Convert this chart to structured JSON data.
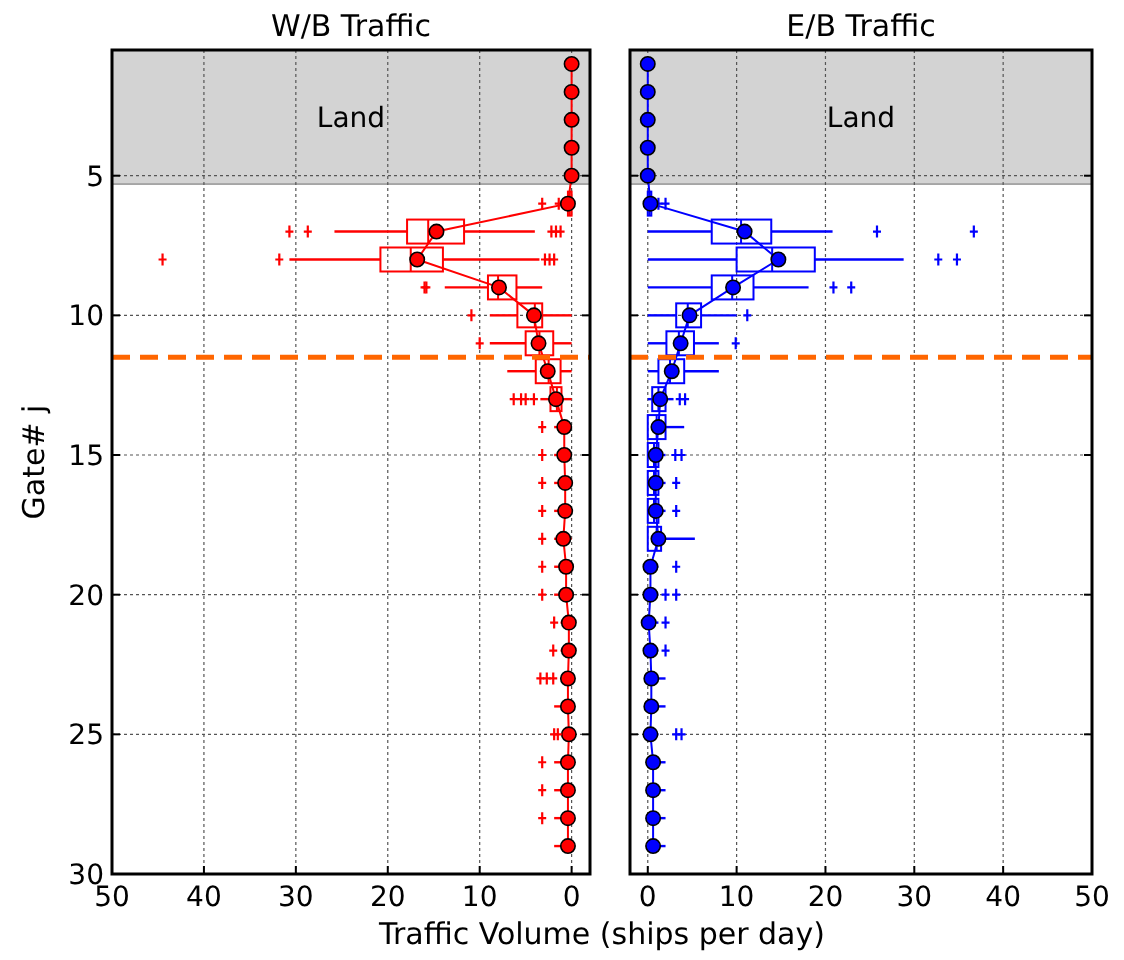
{
  "chart_data": [
    {
      "type": "box",
      "title": "W/B Traffic",
      "orientation": "horizontal",
      "xlabel": "Traffic Volume (ships per day)",
      "ylabel": "Gate# j",
      "xlim": [
        50,
        -2
      ],
      "xticks": [
        50,
        40,
        30,
        20,
        10,
        0
      ],
      "ylim": [
        30,
        0.5
      ],
      "yticks": [
        5,
        10,
        15,
        20,
        25,
        30
      ],
      "grid": true,
      "bands": [
        {
          "axis": "y",
          "from": 0.5,
          "to": 5.3,
          "label": "Land",
          "color": "#d3d3d3"
        }
      ],
      "ref_lines": [
        {
          "axis": "y",
          "value": 11.5,
          "color": "#ff6600",
          "line_style": "dashed"
        }
      ],
      "series": [
        {
          "color": "#ff0000",
          "x": [
            6,
            7,
            8,
            9,
            10,
            11,
            12,
            13
          ],
          "boxes": [
            {
              "low": 0,
              "q1": 0,
              "median": 0.2,
              "q3": 0.4,
              "high": 0.6,
              "outliers": [
                1.4,
                3.2
              ]
            },
            {
              "low": 4.0,
              "q1": 11.7,
              "median": 15.6,
              "q3": 17.9,
              "high": 25.8,
              "outliers": [
                1.2,
                1.7,
                2.2,
                28.7,
                30.7
              ]
            },
            {
              "low": 3.5,
              "q1": 14.0,
              "median": 17.5,
              "q3": 20.8,
              "high": 30.7,
              "outliers": [
                1.9,
                2.4,
                2.9,
                31.8,
                44.5
              ]
            },
            {
              "low": 3.2,
              "q1": 6.0,
              "median": 8.0,
              "q3": 9.1,
              "high": 13.8,
              "outliers": [
                15.8,
                16.0
              ]
            },
            {
              "low": 0,
              "q1": 3.2,
              "median": 4.0,
              "q3": 5.9,
              "high": 8.9,
              "outliers": [
                10.9
              ]
            },
            {
              "low": 0,
              "q1": 2.0,
              "median": 3.5,
              "q3": 5.0,
              "high": 8.9,
              "outliers": [
                10.0
              ]
            },
            {
              "low": 0,
              "q1": 1.2,
              "median": 2.5,
              "q3": 3.9,
              "high": 7.0
            },
            {
              "low": 0,
              "q1": 1.1,
              "median": 1.6,
              "q3": 2.3,
              "high": 3.4,
              "outliers": [
                4.1,
                5.0,
                5.5,
                6.3
              ]
            }
          ]
        },
        {
          "type": "line",
          "color": "#ff0000",
          "marker": "circle",
          "x": [
            1,
            2,
            3,
            4,
            5,
            6,
            7,
            8,
            9,
            10,
            11,
            12,
            13,
            14,
            15,
            16,
            17,
            18,
            19,
            20,
            21,
            22,
            23,
            24,
            25,
            26,
            27,
            28,
            29
          ],
          "values": [
            0,
            0,
            0,
            0,
            0,
            0.4,
            14.7,
            16.8,
            7.9,
            4.1,
            3.6,
            2.6,
            1.7,
            0.8,
            0.8,
            0.7,
            0.7,
            0.9,
            0.6,
            0.6,
            0.3,
            0.3,
            0.4,
            0.4,
            0.3,
            0.4,
            0.4,
            0.4,
            0.4
          ],
          "errors": [
            null,
            null,
            null,
            null,
            null,
            null,
            null,
            null,
            null,
            null,
            null,
            null,
            null,
            [
              0,
              1.9
            ],
            [
              0,
              1.9
            ],
            [
              0,
              1.9
            ],
            [
              0,
              1.9
            ],
            [
              0,
              1.9
            ],
            [
              0,
              1.9
            ],
            [
              0,
              1.9
            ],
            [
              0,
              1.2
            ],
            [
              0,
              1.2
            ],
            [
              0,
              1.2
            ],
            [
              0,
              1.9
            ],
            [
              0,
              0.9
            ],
            [
              0,
              1.9
            ],
            [
              0,
              1.9
            ],
            [
              0,
              1.9
            ],
            [
              0,
              1.9
            ]
          ]
        },
        {
          "type": "scatter",
          "color": "#ff0000",
          "marker": "cross",
          "x": [
            14,
            15,
            16,
            17,
            18,
            19,
            20,
            21,
            22,
            23,
            23,
            23,
            25,
            25,
            26,
            27,
            28
          ],
          "values": [
            3.2,
            3.2,
            3.2,
            3.2,
            3.2,
            3.2,
            3.2,
            1.9,
            2.0,
            2.0,
            2.7,
            3.4,
            1.5,
            1.9,
            3.2,
            3.2,
            3.2
          ]
        }
      ]
    },
    {
      "type": "box",
      "title": "E/B Traffic",
      "orientation": "horizontal",
      "xlim": [
        -2,
        50
      ],
      "xticks": [
        0,
        10,
        20,
        30,
        40,
        50
      ],
      "ylim": [
        30,
        0.5
      ],
      "yticks": [
        5,
        10,
        15,
        20,
        25,
        30
      ],
      "grid": true,
      "tick_labels": "x",
      "bands": [
        {
          "axis": "y",
          "from": 0.5,
          "to": 5.3,
          "label": "Land",
          "color": "#d3d3d3"
        }
      ],
      "ref_lines": [
        {
          "axis": "y",
          "value": 11.5,
          "color": "#ff6600",
          "line_style": "dashed"
        }
      ],
      "series": [
        {
          "color": "#0000ff",
          "x": [
            6,
            7,
            8,
            9,
            10,
            11,
            12,
            13,
            14,
            15,
            16,
            17,
            18
          ],
          "boxes": [
            {
              "low": 0,
              "q1": 0,
              "median": 0.2,
              "q3": 0.4,
              "high": 0.6,
              "outliers": [
                1.2,
                2.0
              ]
            },
            {
              "low": 0,
              "q1": 7.2,
              "median": 10.5,
              "q3": 13.9,
              "high": 20.8,
              "outliers": [
                25.8,
                36.7
              ]
            },
            {
              "low": 0,
              "q1": 10.0,
              "median": 14.0,
              "q3": 18.8,
              "high": 28.8,
              "outliers": [
                32.7,
                34.8
              ]
            },
            {
              "low": 0,
              "q1": 7.2,
              "median": 9.5,
              "q3": 11.9,
              "high": 18.1,
              "outliers": [
                20.9,
                22.9
              ]
            },
            {
              "low": 0,
              "q1": 3.2,
              "median": 4.5,
              "q3": 6.0,
              "high": 10.0,
              "outliers": [
                11.2
              ]
            },
            {
              "low": 0,
              "q1": 2.1,
              "median": 3.5,
              "q3": 5.2,
              "high": 8.0,
              "outliers": [
                9.9
              ]
            },
            {
              "low": 0,
              "q1": 1.2,
              "median": 2.5,
              "q3": 4.1,
              "high": 8.0
            },
            {
              "low": 0,
              "q1": 0.5,
              "median": 1.2,
              "q3": 2.0,
              "high": 2.9,
              "outliers": [
                3.6,
                4.2
              ]
            },
            {
              "low": 0,
              "q1": 0,
              "median": 1.0,
              "q3": 2.0,
              "high": 4.1
            },
            {
              "low": 0,
              "q1": 0,
              "median": 0.7,
              "q3": 1.2,
              "high": 2.0,
              "outliers": [
                3.1,
                3.8
              ]
            },
            {
              "low": 0,
              "q1": 0,
              "median": 0.7,
              "q3": 1.2,
              "high": 2.0,
              "outliers": [
                3.2
              ]
            },
            {
              "low": 0,
              "q1": 0,
              "median": 0.7,
              "q3": 1.2,
              "high": 2.0,
              "outliers": [
                3.2
              ]
            },
            {
              "low": 0,
              "q1": 0,
              "median": 1.0,
              "q3": 1.5,
              "high": 5.3
            }
          ]
        },
        {
          "type": "line",
          "color": "#0000ff",
          "marker": "circle",
          "x": [
            1,
            2,
            3,
            4,
            5,
            6,
            7,
            8,
            9,
            10,
            11,
            12,
            13,
            14,
            15,
            16,
            17,
            18,
            19,
            20,
            21,
            22,
            23,
            24,
            25,
            26,
            27,
            28,
            29
          ],
          "values": [
            0,
            0,
            0,
            0,
            0,
            0.3,
            10.9,
            14.7,
            9.6,
            4.7,
            3.7,
            2.7,
            1.4,
            1.2,
            0.9,
            0.9,
            0.9,
            1.2,
            0.3,
            0.3,
            0.1,
            0.3,
            0.4,
            0.4,
            0.3,
            0.6,
            0.6,
            0.6,
            0.6
          ],
          "errors": [
            null,
            null,
            null,
            null,
            null,
            null,
            null,
            null,
            null,
            null,
            null,
            null,
            null,
            null,
            null,
            null,
            null,
            null,
            [
              0,
              1.2
            ],
            [
              0,
              1.2
            ],
            [
              0,
              1.2
            ],
            [
              0,
              1.2
            ],
            [
              0,
              2.0
            ],
            [
              0,
              2.0
            ],
            [
              0,
              1.2
            ],
            [
              0,
              2.0
            ],
            [
              0,
              2.0
            ],
            [
              0,
              2.0
            ],
            [
              0,
              2.0
            ]
          ]
        },
        {
          "type": "scatter",
          "color": "#0000ff",
          "marker": "cross",
          "x": [
            19,
            20,
            20,
            21,
            22,
            25,
            25
          ],
          "values": [
            3.2,
            2.0,
            3.2,
            2.0,
            2.0,
            3.2,
            3.8
          ]
        }
      ]
    }
  ]
}
